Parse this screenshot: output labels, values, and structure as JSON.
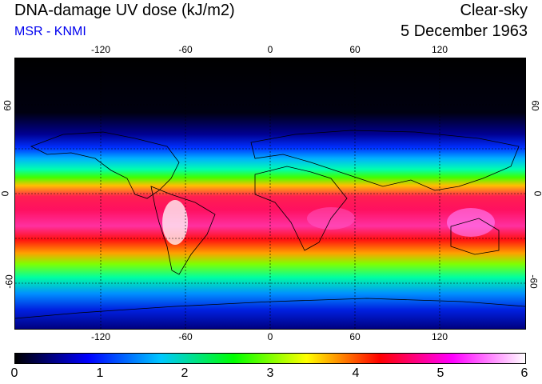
{
  "header": {
    "title": "DNA-damage UV dose (kJ/m2)",
    "subtitle": "MSR - KNMI",
    "condition": "Clear-sky",
    "date": "5 December 1963"
  },
  "map": {
    "lon_ticks_top": [
      "-120",
      "-60",
      "0",
      "60",
      "120"
    ],
    "lon_ticks_bottom": [
      "-120",
      "-60",
      "0",
      "60",
      "120"
    ],
    "lat_ticks_left": [
      "60",
      "0",
      "-60"
    ],
    "lat_ticks_right": [
      "60",
      "0",
      "-60"
    ]
  },
  "colorbar": {
    "ticks": [
      "0",
      "1",
      "2",
      "3",
      "4",
      "5",
      "6"
    ],
    "min": 0,
    "max": 6,
    "colors": [
      "#000000",
      "#0000ff",
      "#00c8ff",
      "#00ff00",
      "#ffff00",
      "#ff0000",
      "#ff00ff",
      "#ffffff"
    ]
  }
}
